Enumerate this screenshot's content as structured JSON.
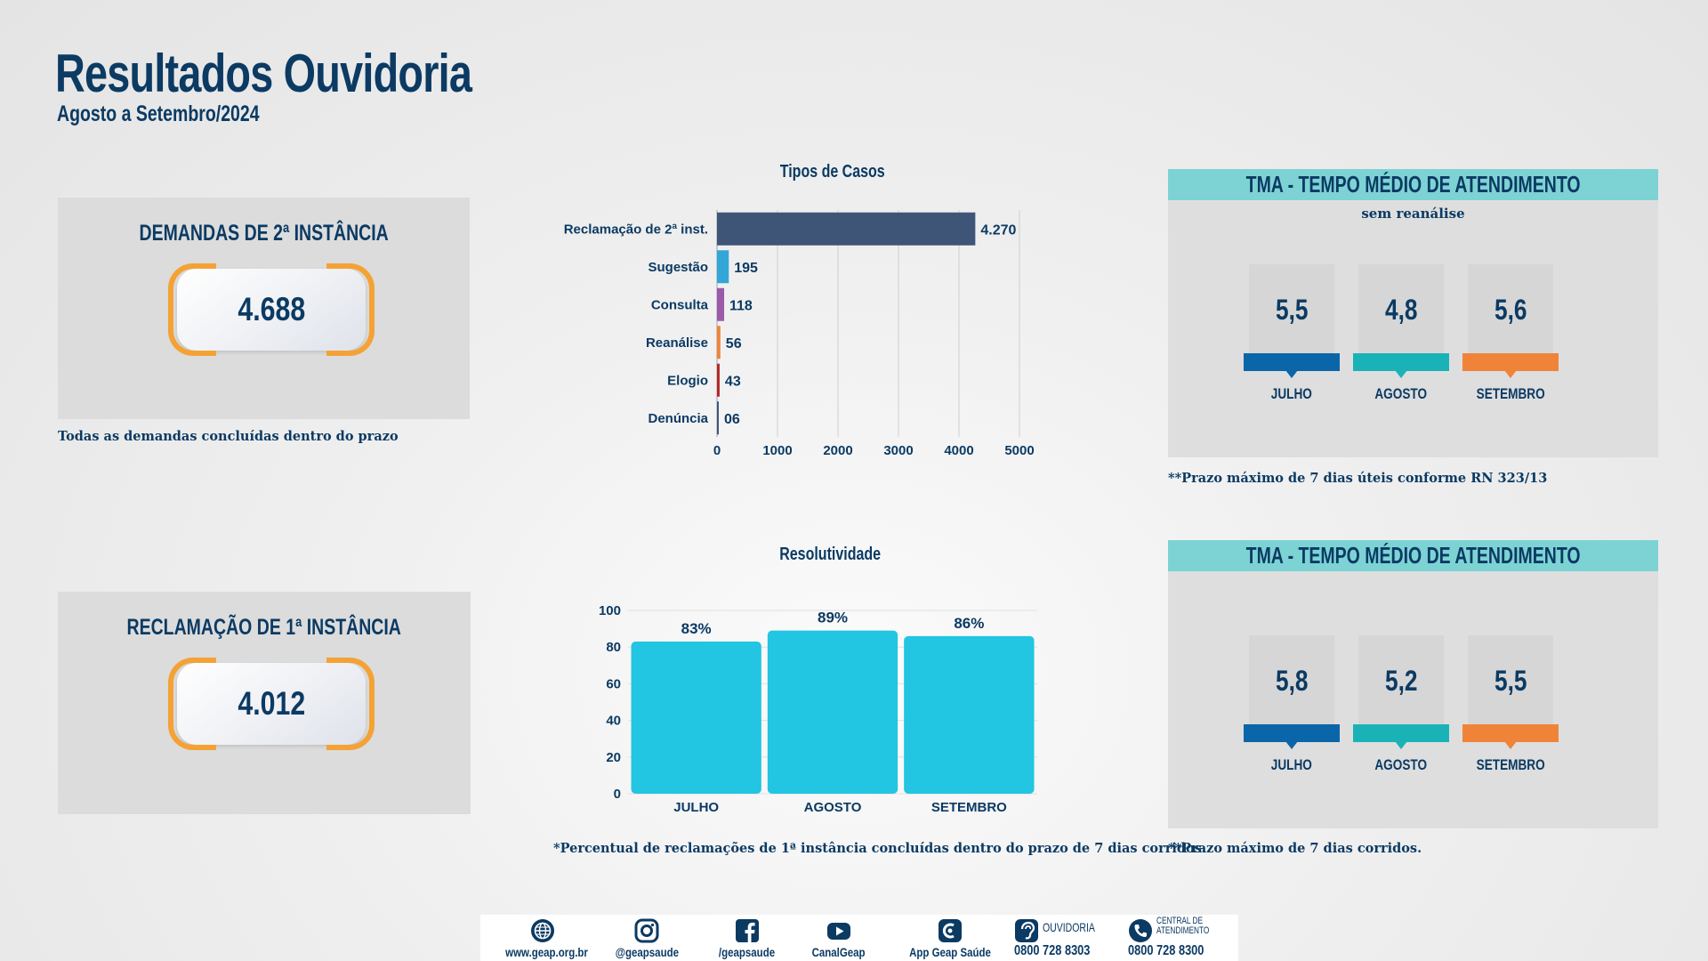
{
  "header": {
    "title": "Resultados Ouvidoria",
    "subtitle": "Agosto a Setembro/2024"
  },
  "kpi_2a": {
    "title": "DEMANDAS DE 2ª INSTÂNCIA",
    "value": "4.688",
    "note": "Todas as demandas concluídas dentro do prazo"
  },
  "kpi_1a": {
    "title": "RECLAMAÇÃO DE 1ª INSTÂNCIA",
    "value": "4.012"
  },
  "tma_top": {
    "title": "TMA - TEMPO MÉDIO DE ATENDIMENTO",
    "subtitle": "sem reanálise",
    "items": [
      {
        "month": "JULHO",
        "value": "5,5",
        "color": "#0a66a8"
      },
      {
        "month": "AGOSTO",
        "value": "4,8",
        "color": "#19b3b7"
      },
      {
        "month": "SETEMBRO",
        "value": "5,6",
        "color": "#ef8438"
      }
    ],
    "note": "**Prazo máximo de 7 dias úteis conforme RN 323/13"
  },
  "tma_bottom": {
    "title": "TMA - TEMPO MÉDIO DE ATENDIMENTO",
    "items": [
      {
        "month": "JULHO",
        "value": "5,8",
        "color": "#0a66a8"
      },
      {
        "month": "AGOSTO",
        "value": "5,2",
        "color": "#19b3b7"
      },
      {
        "month": "SETEMBRO",
        "value": "5,5",
        "color": "#ef8438"
      }
    ],
    "note": "**Prazo máximo de 7 dias corridos."
  },
  "resolutividade_note": "*Percentual de reclamações de 1ª instância concluídas dentro do prazo de 7 dias corridos.",
  "footer": {
    "items": [
      {
        "icon": "globe-icon",
        "label": "www.geap.org.br"
      },
      {
        "icon": "instagram-icon",
        "label": "@geapsaude"
      },
      {
        "icon": "facebook-icon",
        "label": "/geapsaude"
      },
      {
        "icon": "youtube-icon",
        "label": "CanalGeap"
      },
      {
        "icon": "app-icon",
        "label": "App Geap Saúde"
      }
    ],
    "ouvidoria": {
      "label": "OUVIDORIA",
      "phone": "0800 728 8303"
    },
    "central": {
      "label_1": "CENTRAL DE",
      "label_2": "ATENDIMENTO",
      "phone": "0800 728 8300"
    }
  },
  "chart_data": [
    {
      "type": "bar",
      "orientation": "horizontal",
      "title": "Tipos de Casos",
      "categories": [
        "Reclamação de 2ª inst.",
        "Sugestão",
        "Consulta",
        "Reanálise",
        "Elogio",
        "Denúncia"
      ],
      "values": [
        4270,
        195,
        118,
        56,
        43,
        6
      ],
      "value_labels": [
        "4.270",
        "195",
        "118",
        "56",
        "43",
        "06"
      ],
      "colors": [
        "#3f5577",
        "#32a6d6",
        "#9b59a8",
        "#ef8438",
        "#b82424",
        "#3f5577"
      ],
      "xlim": [
        0,
        5000
      ],
      "xticks": [
        0,
        1000,
        2000,
        3000,
        4000,
        5000
      ],
      "grid": true
    },
    {
      "type": "bar",
      "title": "Resolutividade",
      "categories": [
        "JULHO",
        "AGOSTO",
        "SETEMBRO"
      ],
      "values": [
        83,
        89,
        86
      ],
      "value_labels": [
        "83%",
        "89%",
        "86%"
      ],
      "color": "#22c5e2",
      "ylim": [
        0,
        100
      ],
      "yticks": [
        0,
        20,
        40,
        60,
        80,
        100
      ],
      "grid": true
    }
  ]
}
